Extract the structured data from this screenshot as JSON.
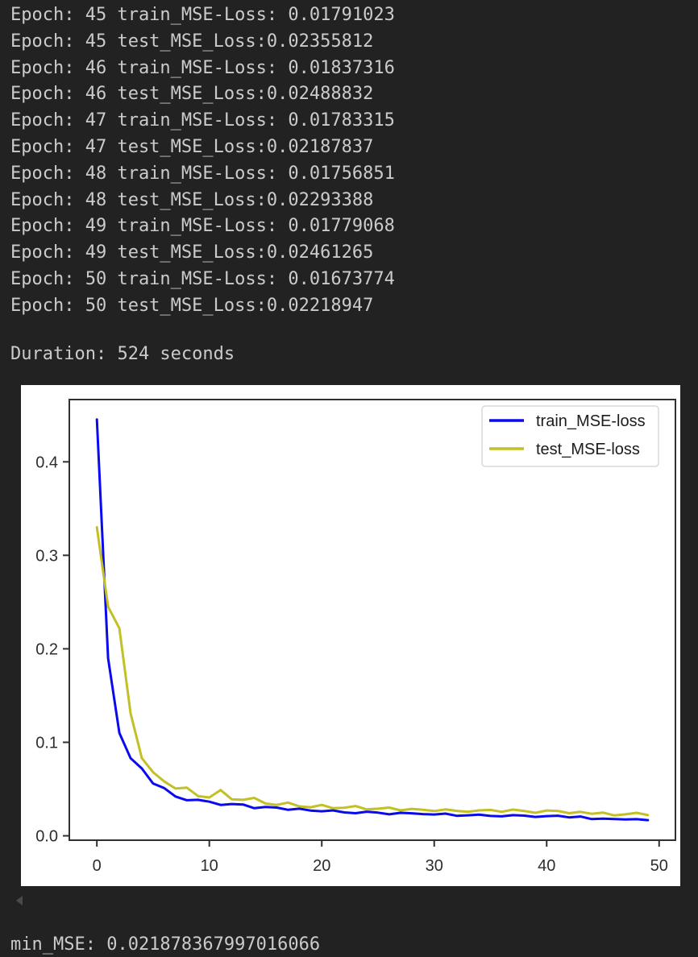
{
  "console": {
    "lines": [
      "Epoch: 45 train_MSE-Loss: 0.01791023",
      "Epoch: 45 test_MSE_Loss:0.02355812",
      "Epoch: 46 train_MSE-Loss: 0.01837316",
      "Epoch: 46 test_MSE_Loss:0.02488832",
      "Epoch: 47 train_MSE-Loss: 0.01783315",
      "Epoch: 47 test_MSE_Loss:0.02187837",
      "Epoch: 48 train_MSE-Loss: 0.01756851",
      "Epoch: 48 test_MSE_Loss:0.02293388",
      "Epoch: 49 train_MSE-Loss: 0.01779068",
      "Epoch: 49 test_MSE_Loss:0.02461265",
      "Epoch: 50 train_MSE-Loss: 0.01673774",
      "Epoch: 50 test_MSE_Loss:0.02218947"
    ]
  },
  "duration_text": "Duration: 524 seconds",
  "min_mse_text": "min_MSE: 0.021878367997016066",
  "colors": {
    "background": "#222222",
    "console_text": "#cbcbcb",
    "figure_background": "#ffffff",
    "train_line": "#0a0af0",
    "test_line": "#c2c024",
    "axis": "#303030",
    "tick_label": "#2d2d2d",
    "legend_border": "#d8d8d8"
  },
  "chart_data": {
    "type": "line",
    "x": [
      0,
      1,
      2,
      3,
      4,
      5,
      6,
      7,
      8,
      9,
      10,
      11,
      12,
      13,
      14,
      15,
      16,
      17,
      18,
      19,
      20,
      21,
      22,
      23,
      24,
      25,
      26,
      27,
      28,
      29,
      30,
      31,
      32,
      33,
      34,
      35,
      36,
      37,
      38,
      39,
      40,
      41,
      42,
      43,
      44,
      45,
      46,
      47,
      48,
      49
    ],
    "series": [
      {
        "name": "train_MSE-loss",
        "color": "#0a0af0",
        "values": [
          0.4452,
          0.19,
          0.11,
          0.083,
          0.072,
          0.056,
          0.051,
          0.042,
          0.038,
          0.0385,
          0.0365,
          0.033,
          0.034,
          0.0335,
          0.0295,
          0.0308,
          0.0302,
          0.0278,
          0.029,
          0.027,
          0.0262,
          0.0272,
          0.025,
          0.0242,
          0.0258,
          0.0248,
          0.023,
          0.0246,
          0.0241,
          0.0232,
          0.0228,
          0.0237,
          0.0214,
          0.0219,
          0.0227,
          0.0212,
          0.0208,
          0.0221,
          0.0216,
          0.0202,
          0.0211,
          0.0215,
          0.0197,
          0.0206,
          0.01791023,
          0.01837316,
          0.01783315,
          0.01756851,
          0.01779068,
          0.01673774
        ]
      },
      {
        "name": "test_MSE-loss",
        "color": "#c2c024",
        "values": [
          0.33,
          0.245,
          0.222,
          0.131,
          0.083,
          0.068,
          0.058,
          0.0505,
          0.0515,
          0.0425,
          0.041,
          0.049,
          0.039,
          0.0385,
          0.0405,
          0.0345,
          0.033,
          0.0355,
          0.0315,
          0.0305,
          0.033,
          0.0295,
          0.03,
          0.0318,
          0.0282,
          0.029,
          0.0302,
          0.0272,
          0.0288,
          0.0278,
          0.0265,
          0.0282,
          0.0267,
          0.0256,
          0.0272,
          0.0277,
          0.0256,
          0.028,
          0.0266,
          0.0246,
          0.0271,
          0.0266,
          0.0242,
          0.0256,
          0.02355812,
          0.02488832,
          0.02187837,
          0.02293388,
          0.02461265,
          0.02218947
        ]
      }
    ],
    "xticks": [
      0,
      10,
      20,
      30,
      40,
      50
    ],
    "xticklabels": [
      "0",
      "10",
      "20",
      "30",
      "40",
      "50"
    ],
    "yticks": [
      0.0,
      0.1,
      0.2,
      0.3,
      0.4
    ],
    "yticklabels": [
      "0.0",
      "0.1",
      "0.2",
      "0.3",
      "0.4"
    ],
    "xlim": [
      -2.45,
      51.45
    ],
    "ylim": [
      -0.0047,
      0.4666
    ],
    "grid": false,
    "legend": {
      "position": "upper right",
      "labels": [
        "train_MSE-loss",
        "test_MSE-loss"
      ]
    },
    "title": "",
    "xlabel": "",
    "ylabel": ""
  }
}
